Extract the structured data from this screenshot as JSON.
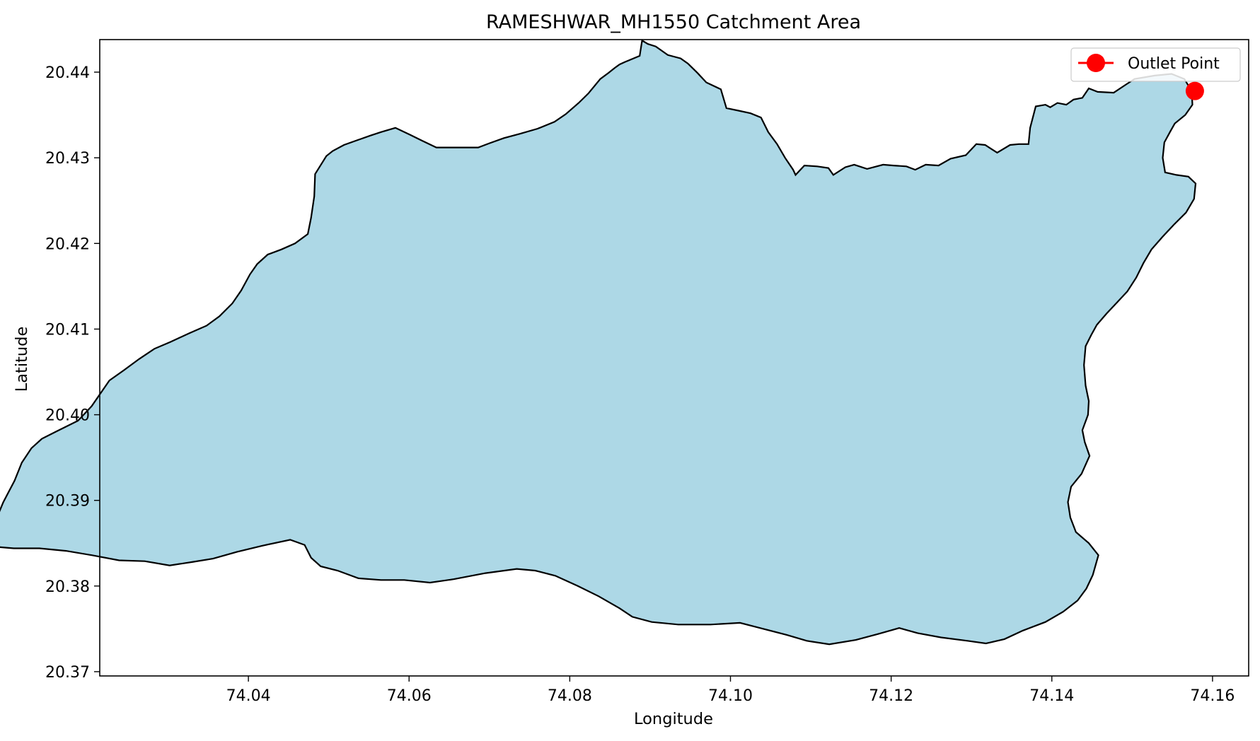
{
  "chart_data": {
    "type": "map",
    "title": "RAMESHWAR_MH1550 Catchment Area",
    "xlabel": "Longitude",
    "ylabel": "Latitude",
    "xlim": [
      74.0215,
      74.1645
    ],
    "ylim": [
      20.3695,
      20.4438
    ],
    "x_ticks": [
      "74.04",
      "74.06",
      "74.08",
      "74.10",
      "74.12",
      "74.14",
      "74.16"
    ],
    "x_tick_values": [
      74.04,
      74.06,
      74.08,
      74.1,
      74.12,
      74.14,
      74.16
    ],
    "y_ticks": [
      "20.37",
      "20.38",
      "20.39",
      "20.40",
      "20.41",
      "20.42",
      "20.43",
      "20.44"
    ],
    "y_tick_values": [
      20.37,
      20.38,
      20.39,
      20.4,
      20.41,
      20.42,
      20.43,
      20.44
    ],
    "grid": false,
    "legend": {
      "position": "top-right",
      "entries": [
        "Outlet Point"
      ]
    },
    "catchment": {
      "fill_color": "#add8e6",
      "edge_color": "#000000",
      "boundary": [
        [
          74.1549,
          20.4398
        ],
        [
          74.1528,
          20.4396
        ],
        [
          74.1503,
          20.4392
        ],
        [
          74.1493,
          20.4386
        ],
        [
          74.1477,
          20.4376
        ],
        [
          74.1457,
          20.4377
        ],
        [
          74.1446,
          20.4381
        ],
        [
          74.1438,
          20.437
        ],
        [
          74.1427,
          20.4368
        ],
        [
          74.1418,
          20.4362
        ],
        [
          74.1407,
          20.4364
        ],
        [
          74.1398,
          20.4359
        ],
        [
          74.1392,
          20.4362
        ],
        [
          74.138,
          20.436
        ],
        [
          74.1373,
          20.4335
        ],
        [
          74.1371,
          20.4316
        ],
        [
          74.1359,
          20.4316
        ],
        [
          74.1348,
          20.4315
        ],
        [
          74.1332,
          20.4306
        ],
        [
          74.1317,
          20.4315
        ],
        [
          74.1306,
          20.4316
        ],
        [
          74.1293,
          20.4303
        ],
        [
          74.1274,
          20.4299
        ],
        [
          74.1259,
          20.4291
        ],
        [
          74.1243,
          20.4292
        ],
        [
          74.123,
          20.4286
        ],
        [
          74.1219,
          20.429
        ],
        [
          74.1203,
          20.4291
        ],
        [
          74.119,
          20.4292
        ],
        [
          74.117,
          20.4287
        ],
        [
          74.1154,
          20.4292
        ],
        [
          74.1143,
          20.4289
        ],
        [
          74.1128,
          20.428
        ],
        [
          74.1122,
          20.4288
        ],
        [
          74.1108,
          20.429
        ],
        [
          74.1092,
          20.4291
        ],
        [
          74.1081,
          20.428
        ],
        [
          74.1078,
          20.4286
        ],
        [
          74.1068,
          20.43
        ],
        [
          74.1058,
          20.4316
        ],
        [
          74.1047,
          20.433
        ],
        [
          74.1038,
          20.4347
        ],
        [
          74.1025,
          20.4352
        ],
        [
          74.101,
          20.4355
        ],
        [
          74.0995,
          20.4358
        ],
        [
          74.0988,
          20.438
        ],
        [
          74.097,
          20.4388
        ],
        [
          74.0959,
          20.4399
        ],
        [
          74.0947,
          20.441
        ],
        [
          74.0938,
          20.4416
        ],
        [
          74.0922,
          20.442
        ],
        [
          74.0907,
          20.443
        ],
        [
          74.0897,
          20.4433
        ],
        [
          74.089,
          20.4437
        ],
        [
          74.0887,
          20.4419
        ],
        [
          74.0869,
          20.4412
        ],
        [
          74.0862,
          20.4409
        ],
        [
          74.0856,
          20.4405
        ],
        [
          74.0848,
          20.4399
        ],
        [
          74.0838,
          20.4392
        ],
        [
          74.0823,
          20.4375
        ],
        [
          74.0811,
          20.4364
        ],
        [
          74.0795,
          20.4351
        ],
        [
          74.0781,
          20.4342
        ],
        [
          74.076,
          20.4334
        ],
        [
          74.0738,
          20.4328
        ],
        [
          74.0718,
          20.4323
        ],
        [
          74.07,
          20.4317
        ],
        [
          74.0686,
          20.4312
        ],
        [
          74.066,
          20.4312
        ],
        [
          74.0634,
          20.4312
        ],
        [
          74.0616,
          20.432
        ],
        [
          74.0601,
          20.4327
        ],
        [
          74.0583,
          20.4335
        ],
        [
          74.0565,
          20.433
        ],
        [
          74.0552,
          20.4326
        ],
        [
          74.0534,
          20.432
        ],
        [
          74.0519,
          20.4315
        ],
        [
          74.0505,
          20.4308
        ],
        [
          74.0497,
          20.4302
        ],
        [
          74.0483,
          20.4281
        ],
        [
          74.0482,
          20.4255
        ],
        [
          74.0478,
          20.423
        ],
        [
          74.0474,
          20.4211
        ],
        [
          74.0458,
          20.42
        ],
        [
          74.0441,
          20.4193
        ],
        [
          74.0424,
          20.4187
        ],
        [
          74.0411,
          20.4176
        ],
        [
          74.0402,
          20.4164
        ],
        [
          74.0391,
          20.4145
        ],
        [
          74.038,
          20.413
        ],
        [
          74.0364,
          20.4115
        ],
        [
          74.0348,
          20.4104
        ],
        [
          74.0326,
          20.4095
        ],
        [
          74.0303,
          20.4085
        ],
        [
          74.0283,
          20.4077
        ],
        [
          74.0264,
          20.4065
        ],
        [
          74.0245,
          20.4052
        ],
        [
          74.0227,
          20.404
        ],
        [
          74.0216,
          20.4025
        ],
        [
          74.0205,
          20.401
        ],
        [
          74.0188,
          20.3993
        ],
        [
          74.0162,
          20.3981
        ],
        [
          74.0143,
          20.3972
        ],
        [
          74.013,
          20.3961
        ],
        [
          74.0118,
          20.3944
        ],
        [
          74.0109,
          20.3923
        ],
        [
          74.0095,
          20.3898
        ],
        [
          74.0087,
          20.388
        ],
        [
          74.0077,
          20.386
        ],
        [
          74.0082,
          20.3846
        ],
        [
          74.0108,
          20.3844
        ],
        [
          74.014,
          20.3844
        ],
        [
          74.0173,
          20.3841
        ],
        [
          74.0205,
          20.3836
        ],
        [
          74.0239,
          20.383
        ],
        [
          74.0271,
          20.3829
        ],
        [
          74.0302,
          20.3824
        ],
        [
          74.033,
          20.3828
        ],
        [
          74.0356,
          20.3832
        ],
        [
          74.0386,
          20.384
        ],
        [
          74.0417,
          20.3847
        ],
        [
          74.0452,
          20.3854
        ],
        [
          74.047,
          20.3848
        ],
        [
          74.0478,
          20.3833
        ],
        [
          74.049,
          20.3823
        ],
        [
          74.0511,
          20.3818
        ],
        [
          74.0537,
          20.3809
        ],
        [
          74.0565,
          20.3807
        ],
        [
          74.0594,
          20.3807
        ],
        [
          74.0626,
          20.3804
        ],
        [
          74.0656,
          20.3808
        ],
        [
          74.0695,
          20.3815
        ],
        [
          74.0734,
          20.382
        ],
        [
          74.0757,
          20.3818
        ],
        [
          74.0782,
          20.3812
        ],
        [
          74.081,
          20.38
        ],
        [
          74.0836,
          20.3788
        ],
        [
          74.0862,
          20.3774
        ],
        [
          74.0878,
          20.3764
        ],
        [
          74.0902,
          20.3758
        ],
        [
          74.0935,
          20.3755
        ],
        [
          74.0975,
          20.3755
        ],
        [
          74.1012,
          20.3757
        ],
        [
          74.1041,
          20.375
        ],
        [
          74.107,
          20.3743
        ],
        [
          74.1095,
          20.3736
        ],
        [
          74.1123,
          20.3732
        ],
        [
          74.1156,
          20.3737
        ],
        [
          74.1184,
          20.3744
        ],
        [
          74.121,
          20.3751
        ],
        [
          74.1233,
          20.3745
        ],
        [
          74.1262,
          20.374
        ],
        [
          74.1295,
          20.3736
        ],
        [
          74.1318,
          20.3733
        ],
        [
          74.1341,
          20.3738
        ],
        [
          74.1364,
          20.3748
        ],
        [
          74.1392,
          20.3758
        ],
        [
          74.1414,
          20.377
        ],
        [
          74.1432,
          20.3783
        ],
        [
          74.1443,
          20.3797
        ],
        [
          74.1451,
          20.3813
        ],
        [
          74.1458,
          20.3836
        ],
        [
          74.1446,
          20.385
        ],
        [
          74.143,
          20.3863
        ],
        [
          74.1423,
          20.388
        ],
        [
          74.142,
          20.3898
        ],
        [
          74.1424,
          20.3916
        ],
        [
          74.1437,
          20.3931
        ],
        [
          74.1447,
          20.3952
        ],
        [
          74.1441,
          20.3968
        ],
        [
          74.1438,
          20.3982
        ],
        [
          74.1445,
          20.4
        ],
        [
          74.1446,
          20.4016
        ],
        [
          74.1442,
          20.4034
        ],
        [
          74.144,
          20.4058
        ],
        [
          74.1442,
          20.408
        ],
        [
          74.1449,
          20.4093
        ],
        [
          74.1456,
          20.4105
        ],
        [
          74.1468,
          20.4118
        ],
        [
          74.1481,
          20.4131
        ],
        [
          74.1494,
          20.4144
        ],
        [
          74.1505,
          20.416
        ],
        [
          74.1514,
          20.4177
        ],
        [
          74.1524,
          20.4193
        ],
        [
          74.1538,
          20.4208
        ],
        [
          74.1552,
          20.4222
        ],
        [
          74.1567,
          20.4236
        ],
        [
          74.1577,
          20.4252
        ],
        [
          74.1579,
          20.427
        ],
        [
          74.157,
          20.4278
        ],
        [
          74.1555,
          20.428
        ],
        [
          74.1541,
          20.4283
        ],
        [
          74.1538,
          20.43
        ],
        [
          74.154,
          20.4318
        ],
        [
          74.1547,
          20.433
        ],
        [
          74.1553,
          20.434
        ],
        [
          74.1566,
          20.435
        ],
        [
          74.1575,
          20.4362
        ],
        [
          74.1574,
          20.4378
        ],
        [
          74.1565,
          20.4392
        ],
        [
          74.1549,
          20.4398
        ]
      ]
    },
    "outlet_point": {
      "label": "Outlet Point",
      "x": 74.1578,
      "y": 20.4378,
      "color": "#ff0000"
    }
  }
}
